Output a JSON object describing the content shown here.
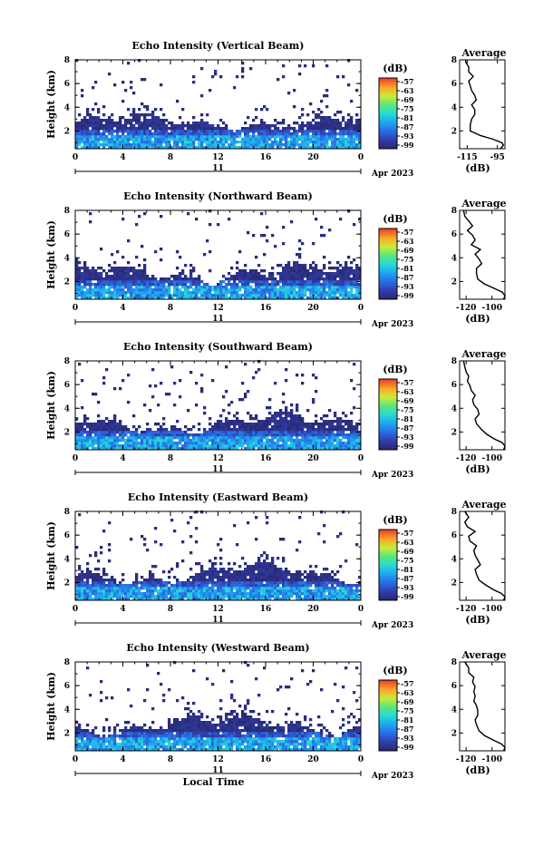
{
  "figure": {
    "shared_x_label": "Local Time",
    "date_day": "11",
    "date_month_year": "Apr 2023",
    "colorbar_unit": "(dB)",
    "colorbar_ticks": [
      "-57",
      "-63",
      "-69",
      "-75",
      "-81",
      "-87",
      "-93",
      "-99"
    ]
  },
  "chart_data": [
    {
      "type": "heatmap",
      "title": "Echo Intensity (Vertical Beam)",
      "ylabel": "Height (km)",
      "xlabel": "",
      "x_ticks": [
        "0",
        "4",
        "8",
        "12",
        "16",
        "20",
        "0"
      ],
      "y_ticks": [
        "2",
        "4",
        "6",
        "8"
      ],
      "xlim": [
        0,
        24
      ],
      "ylim": [
        0.5,
        8
      ],
      "colorbar": {
        "unit": "(dB)",
        "range": [
          -99,
          -55
        ]
      },
      "profile": {
        "title": "Average",
        "xlabel": "(dB)",
        "x_ticks": [
          "-115",
          "-95"
        ],
        "x_tick_values": [
          -115,
          -95
        ],
        "xlim": [
          -120,
          -90
        ],
        "y_ticks": [
          "2",
          "4",
          "6",
          "8"
        ],
        "height_km": [
          0.5,
          0.8,
          1.0,
          1.3,
          1.6,
          2.0,
          2.5,
          3.0,
          3.4,
          3.8,
          4.2,
          4.6,
          5.0,
          5.4,
          5.8,
          6.2,
          6.6,
          7.0,
          7.4,
          7.8,
          8.0
        ],
        "avg_db": [
          -93,
          -91,
          -92,
          -98,
          -106,
          -113,
          -113,
          -112,
          -110,
          -110,
          -112,
          -109,
          -110,
          -112,
          -113,
          -114,
          -111,
          -114,
          -114,
          -116,
          -116
        ]
      }
    },
    {
      "type": "heatmap",
      "title": "Echo Intensity (Northward Beam)",
      "ylabel": "Height (km)",
      "xlabel": "",
      "x_ticks": [
        "0",
        "4",
        "8",
        "12",
        "16",
        "20",
        "0"
      ],
      "y_ticks": [
        "2",
        "4",
        "6",
        "8"
      ],
      "xlim": [
        0,
        24
      ],
      "ylim": [
        0.5,
        8
      ],
      "colorbar": {
        "unit": "(dB)",
        "range": [
          -99,
          -55
        ]
      },
      "profile": {
        "title": "Average",
        "xlabel": "(dB)",
        "x_ticks": [
          "-120",
          "-100"
        ],
        "x_tick_values": [
          -120,
          -100
        ],
        "xlim": [
          -125,
          -90
        ],
        "y_ticks": [
          "2",
          "4",
          "6",
          "8"
        ],
        "height_km": [
          0.5,
          0.8,
          1.1,
          1.4,
          1.8,
          2.2,
          2.7,
          3.1,
          3.5,
          3.9,
          4.3,
          4.7,
          5.1,
          5.5,
          5.9,
          6.3,
          6.7,
          7.1,
          7.5,
          8.0
        ],
        "avg_db": [
          -91,
          -90,
          -92,
          -98,
          -106,
          -111,
          -112,
          -112,
          -108,
          -110,
          -113,
          -109,
          -116,
          -113,
          -115,
          -119,
          -115,
          -118,
          -121,
          -122
        ]
      }
    },
    {
      "type": "heatmap",
      "title": "Echo Intensity (Southward Beam)",
      "ylabel": "Height (km)",
      "xlabel": "",
      "x_ticks": [
        "0",
        "4",
        "8",
        "12",
        "16",
        "20",
        "0"
      ],
      "y_ticks": [
        "2",
        "4",
        "6",
        "8"
      ],
      "xlim": [
        0,
        24
      ],
      "ylim": [
        0.5,
        8
      ],
      "colorbar": {
        "unit": "(dB)",
        "range": [
          -99,
          -55
        ]
      },
      "profile": {
        "title": "Average",
        "xlabel": "(dB)",
        "x_ticks": [
          "-120",
          "-100"
        ],
        "x_tick_values": [
          -120,
          -100
        ],
        "xlim": [
          -125,
          -90
        ],
        "y_ticks": [
          "2",
          "4",
          "6",
          "8"
        ],
        "height_km": [
          0.5,
          0.8,
          1.1,
          1.4,
          1.8,
          2.2,
          2.7,
          3.1,
          3.5,
          3.9,
          4.3,
          4.7,
          5.1,
          5.5,
          5.9,
          6.3,
          6.7,
          7.1,
          7.5,
          8.0
        ],
        "avg_db": [
          -91,
          -90,
          -92,
          -98,
          -104,
          -108,
          -112,
          -113,
          -110,
          -111,
          -114,
          -115,
          -113,
          -116,
          -117,
          -119,
          -118,
          -120,
          -121,
          -122
        ]
      }
    },
    {
      "type": "heatmap",
      "title": "Echo Intensity (Eastward Beam)",
      "ylabel": "Height (km)",
      "xlabel": "",
      "x_ticks": [
        "0",
        "4",
        "8",
        "12",
        "16",
        "20",
        "0"
      ],
      "y_ticks": [
        "2",
        "4",
        "6",
        "8"
      ],
      "xlim": [
        0,
        24
      ],
      "ylim": [
        0.5,
        8
      ],
      "colorbar": {
        "unit": "(dB)",
        "range": [
          -99,
          -55
        ]
      },
      "profile": {
        "title": "Average",
        "xlabel": "(dB)",
        "x_ticks": [
          "-120",
          "-100"
        ],
        "x_tick_values": [
          -120,
          -100
        ],
        "xlim": [
          -125,
          -90
        ],
        "y_ticks": [
          "2",
          "4",
          "6",
          "8"
        ],
        "height_km": [
          0.5,
          0.8,
          1.1,
          1.4,
          1.8,
          2.2,
          2.7,
          3.1,
          3.5,
          3.9,
          4.3,
          4.7,
          5.1,
          5.5,
          5.9,
          6.3,
          6.7,
          7.1,
          7.5,
          8.0
        ],
        "avg_db": [
          -91,
          -90,
          -93,
          -99,
          -105,
          -110,
          -112,
          -113,
          -109,
          -111,
          -113,
          -114,
          -112,
          -117,
          -118,
          -113,
          -119,
          -121,
          -118,
          -121
        ]
      }
    },
    {
      "type": "heatmap",
      "title": "Echo Intensity (Westward Beam)",
      "ylabel": "Height (km)",
      "xlabel": "Local Time",
      "x_ticks": [
        "0",
        "4",
        "8",
        "12",
        "16",
        "20",
        "0"
      ],
      "y_ticks": [
        "2",
        "4",
        "6",
        "8"
      ],
      "xlim": [
        0,
        24
      ],
      "ylim": [
        0.5,
        8
      ],
      "colorbar": {
        "unit": "(dB)",
        "range": [
          -99,
          -55
        ]
      },
      "profile": {
        "title": "Average",
        "xlabel": "(dB)",
        "x_ticks": [
          "-120",
          "-100"
        ],
        "x_tick_values": [
          -120,
          -100
        ],
        "xlim": [
          -125,
          -90
        ],
        "y_ticks": [
          "2",
          "4",
          "6",
          "8"
        ],
        "height_km": [
          0.5,
          0.8,
          1.1,
          1.4,
          1.8,
          2.2,
          2.7,
          3.1,
          3.5,
          3.9,
          4.3,
          4.7,
          5.1,
          5.5,
          5.9,
          6.3,
          6.7,
          7.1,
          7.5,
          8.0
        ],
        "avg_db": [
          -91,
          -90,
          -93,
          -99,
          -106,
          -110,
          -112,
          -113,
          -111,
          -111,
          -112,
          -114,
          -113,
          -114,
          -113,
          -115,
          -114,
          -118,
          -118,
          -121
        ]
      }
    }
  ]
}
